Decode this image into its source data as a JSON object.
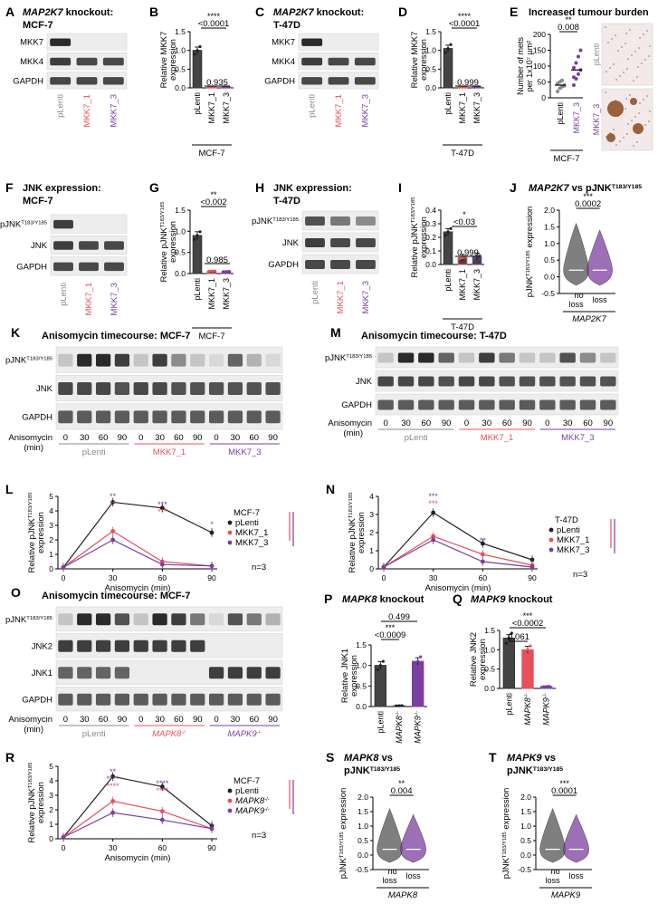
{
  "colors": {
    "black": "#222222",
    "pink": "#e8505b",
    "purple": "#7b3fa0",
    "grey": "#888888",
    "band": "#2a2a2a",
    "bgblot": "#ededed"
  },
  "panels": {
    "A": {
      "letter": "A",
      "title_italic": "MAP2K7",
      "title_rest": " knockout:",
      "title2": "MCF-7",
      "rows": [
        "MKK7",
        "MKK4",
        "GAPDH"
      ],
      "lanes": [
        "pLenti",
        "MKK7_1",
        "MKK7_3"
      ]
    },
    "B": {
      "letter": "B",
      "ylabel": "Relative MKK7",
      "ylabel2": "expression",
      "ticks": [
        "0.0",
        "0.5",
        "1.0",
        "1.5"
      ],
      "stars": "****",
      "p1": "<0.0001",
      "p2": "0.935",
      "cats": [
        "pLenti",
        "MKK7_1",
        "MKK7_3"
      ],
      "group": "MCF-7"
    },
    "C": {
      "letter": "C",
      "title_italic": "MAP2K7",
      "title_rest": " knockout:",
      "title2": "T-47D",
      "rows": [
        "MKK7",
        "MKK4",
        "GAPDH"
      ],
      "lanes": [
        "pLenti",
        "MKK7_1",
        "MKK7_3"
      ]
    },
    "D": {
      "letter": "D",
      "ylabel": "Relative MKK7",
      "ylabel2": "expression",
      "ticks": [
        "0.0",
        "0.5",
        "1.0",
        "1.5"
      ],
      "stars": "****",
      "p1": "<0.0001",
      "p2": "0.999",
      "cats": [
        "pLenti",
        "MKK7_1",
        "MKK7_3"
      ],
      "group": "T-47D"
    },
    "E": {
      "letter": "E",
      "title": "Increased tumour burden",
      "ylabel": "Number of mets",
      "ylabel2": "per 1x10⁷ µm²",
      "ticks": [
        "0",
        "50",
        "100",
        "150",
        "200"
      ],
      "stars": "**",
      "p1": "0.008",
      "cats": [
        "pLenti",
        "MKK7_3"
      ],
      "group": "MCF-7",
      "img1": "pLenti",
      "img2": "MKK7_3"
    },
    "F": {
      "letter": "F",
      "title": "JNK expression:",
      "title2": "MCF-7",
      "rows": [
        "pJNK",
        "JNK",
        "GAPDH"
      ],
      "sup": "T183/Y185",
      "lanes": [
        "pLenti",
        "MKK7_1",
        "MKK7_3"
      ]
    },
    "G": {
      "letter": "G",
      "ylabel": "Relative pJNK",
      "ylabel2": "expression",
      "sup": "T183/Y185",
      "ticks": [
        "0.0",
        "0.5",
        "1.0",
        "1.5"
      ],
      "stars": "**",
      "p1": "<0.002",
      "p2": "0.985",
      "cats": [
        "pLenti",
        "MKK7_1",
        "MKK7_3"
      ],
      "group": "MCF-7"
    },
    "H": {
      "letter": "H",
      "title": "JNK expression:",
      "title2": "T-47D",
      "rows": [
        "pJNK",
        "JNK",
        "GAPDH"
      ],
      "sup": "T183/Y185",
      "lanes": [
        "pLenti",
        "MKK7_1",
        "MKK7_3"
      ]
    },
    "I": {
      "letter": "I",
      "ylabel": "Relative pJNK",
      "ylabel2": "expression",
      "sup": "T183/Y185",
      "ticks": [
        "0.0",
        "0.1",
        "0.2",
        "0.3",
        "0.4"
      ],
      "stars": "*",
      "p1": "<0.03",
      "p2": "0.999",
      "cats": [
        "pLenti",
        "MKK7_1",
        "MKK7_3"
      ],
      "group": "T-47D"
    },
    "J": {
      "letter": "J",
      "title_italic": "MAP2K7",
      "title_rest": " vs pJNK",
      "sup": "T183/Y185",
      "ylabel": "pJNK",
      "ylabel2": " expression",
      "ticks": [
        "-0.5",
        "0.0",
        "0.5",
        "1.0",
        "1.5",
        "2.0"
      ],
      "stars": "***",
      "p1": "0.0002",
      "cats": [
        "no loss",
        "loss"
      ],
      "group": "MAP2K7"
    },
    "K": {
      "letter": "K",
      "title": "Anisomycin timecourse: MCF-7",
      "rows": [
        "pJNK",
        "JNK",
        "GAPDH"
      ],
      "sup": "T183/Y185",
      "xlabel": "Anisomycin",
      "xlabel2": "(min)",
      "times": [
        "0",
        "30",
        "60",
        "90",
        "0",
        "30",
        "60",
        "90",
        "0",
        "30",
        "60",
        "90"
      ],
      "groups": [
        "pLenti",
        "MKK7_1",
        "MKK7_3"
      ]
    },
    "M": {
      "letter": "M",
      "title": "Anisomycin timecourse: T-47D",
      "rows": [
        "pJNK",
        "JNK",
        "GAPDH"
      ],
      "sup": "T183/Y185",
      "xlabel": "Anisomycin",
      "xlabel2": "(min)",
      "times": [
        "0",
        "30",
        "60",
        "90",
        "0",
        "30",
        "60",
        "90",
        "0",
        "30",
        "60",
        "90"
      ],
      "groups": [
        "pLenti",
        "MKK7_1",
        "MKK7_3"
      ]
    },
    "L": {
      "letter": "L",
      "ylabel": "Relative pJNK",
      "ylabel2": "expression",
      "sup": "T183/Y185",
      "xlabel": "Anisomycin (min)",
      "ticks": [
        "0",
        "1",
        "2",
        "3",
        "4",
        "5"
      ],
      "xticks": [
        "0",
        "30",
        "60",
        "90"
      ],
      "legend_title": "MCF-7",
      "legend": [
        "pLenti",
        "MKK7_1",
        "MKK7_3"
      ],
      "n": "n=3",
      "s30a": "**",
      "s30b": "**",
      "s60a": "***",
      "s60b": "***",
      "s90": "*"
    },
    "N": {
      "letter": "N",
      "ylabel": "Relative pJNK",
      "ylabel2": "expression",
      "sup": "T183/Y185",
      "xlabel": "Anisomycin (min)",
      "ticks": [
        "0",
        "1",
        "2",
        "3",
        "4"
      ],
      "xticks": [
        "0",
        "30",
        "60",
        "90"
      ],
      "legend_title": "T-47D",
      "legend": [
        "pLenti",
        "MKK7_1",
        "MKK7_3"
      ],
      "n": "n=3",
      "s30a": "***",
      "s30b": "***",
      "s60": "**"
    },
    "O": {
      "letter": "O",
      "title": "Anisomycin timecourse: MCF-7",
      "rows": [
        "pJNK",
        "JNK2",
        "JNK1",
        "GAPDH"
      ],
      "sup": "T183/Y185",
      "xlabel": "Anisomycin",
      "xlabel2": "(min)",
      "times": [
        "0",
        "30",
        "60",
        "90",
        "0",
        "30",
        "60",
        "90",
        "0",
        "30",
        "60",
        "90"
      ],
      "groups": [
        "pLenti",
        "MAPK8",
        "MAPK9"
      ],
      "groupsup": "-/-"
    },
    "P": {
      "letter": "P",
      "title_italic": "MAPK8",
      "title_rest": " knockout",
      "ylabel": "Relative JNK1",
      "ylabel2": "expression",
      "ticks": [
        "0.0",
        "0.5",
        "1.0",
        "1.5"
      ],
      "stars": "***",
      "p1": "<0.0009",
      "p2": "0.499",
      "cats": [
        "pLenti",
        "MAPK8",
        "MAPK9"
      ],
      "catsup": "-/-"
    },
    "Q": {
      "letter": "Q",
      "title_italic": "MAPK9",
      "title_rest": " knockout",
      "ylabel": "Relative JNK2",
      "ylabel2": "expression",
      "ticks": [
        "0.0",
        "0.5",
        "1.0",
        "1.5"
      ],
      "stars": "***",
      "p1": "<0.0002",
      "p2": "0.061",
      "cats": [
        "pLenti",
        "MAPK8",
        "MAPK9"
      ],
      "catsup": "-/-"
    },
    "R": {
      "letter": "R",
      "ylabel": "Relative pJNK",
      "ylabel2": "expression",
      "sup": "T183/Y185",
      "xlabel": "Anisomycin (min)",
      "ticks": [
        "0",
        "1",
        "2",
        "3",
        "4",
        "5"
      ],
      "xticks": [
        "0",
        "30",
        "60",
        "90"
      ],
      "legend_title": "MCF-7",
      "legend": [
        "pLenti",
        "MAPK8",
        "MAPK9"
      ],
      "legsup": "-/-",
      "n": "n=3",
      "s30a": "**",
      "s30b": "****",
      "s30c": "****",
      "s60a": "****",
      "s60b": "****"
    },
    "S": {
      "letter": "S",
      "title_italic": "MAPK8",
      "title_rest": " vs",
      "title2": "pJNK",
      "sup": "T183/Y185",
      "ylabel": "pJNK",
      "ylabel2": " expression",
      "ticks": [
        "-0.5",
        "0.0",
        "0.5",
        "1.0",
        "1.5",
        "2.0"
      ],
      "stars": "**",
      "p1": "0.004",
      "cats": [
        "no loss",
        "loss"
      ],
      "group": "MAPK8"
    },
    "T": {
      "letter": "T",
      "title_italic": "MAPK9",
      "title_rest": " vs",
      "title2": "pJNK",
      "sup": "T183/Y185",
      "ylabel": "pJNK",
      "ylabel2": " expression",
      "ticks": [
        "-0.5",
        "0.0",
        "0.5",
        "1.0",
        "1.5",
        "2.0"
      ],
      "stars": "***",
      "p1": "0.0001",
      "cats": [
        "no loss",
        "loss"
      ],
      "group": "MAPK9"
    }
  },
  "chart_data": [
    {
      "panel": "B",
      "type": "bar",
      "categories": [
        "pLenti",
        "MKK7_1",
        "MKK7_3"
      ],
      "values": [
        1.0,
        0.02,
        0.02
      ],
      "ylim": [
        0,
        1.5
      ]
    },
    {
      "panel": "D",
      "type": "bar",
      "categories": [
        "pLenti",
        "MKK7_1",
        "MKK7_3"
      ],
      "values": [
        1.05,
        0.02,
        0.02
      ],
      "ylim": [
        0,
        1.5
      ]
    },
    {
      "panel": "E",
      "type": "scatter",
      "categories": [
        "pLenti",
        "MKK7_3"
      ],
      "values": [
        40,
        88
      ],
      "ylim": [
        0,
        200
      ]
    },
    {
      "panel": "G",
      "type": "bar",
      "categories": [
        "pLenti",
        "MKK7_1",
        "MKK7_3"
      ],
      "values": [
        0.9,
        0.06,
        0.05
      ],
      "ylim": [
        0,
        1.5
      ]
    },
    {
      "panel": "I",
      "type": "bar",
      "categories": [
        "pLenti",
        "MKK7_1",
        "MKK7_3"
      ],
      "values": [
        0.24,
        0.05,
        0.06
      ],
      "ylim": [
        0,
        0.4
      ]
    },
    {
      "panel": "L",
      "type": "line",
      "x": [
        0,
        30,
        60,
        90
      ],
      "ylim": [
        0,
        5
      ],
      "series": [
        {
          "name": "pLenti",
          "values": [
            0.1,
            4.6,
            4.2,
            2.5
          ]
        },
        {
          "name": "MKK7_1",
          "values": [
            0.1,
            2.6,
            0.5,
            0.2
          ]
        },
        {
          "name": "MKK7_3",
          "values": [
            0.1,
            2.0,
            0.3,
            0.2
          ]
        }
      ]
    },
    {
      "panel": "N",
      "type": "line",
      "x": [
        0,
        30,
        60,
        90
      ],
      "ylim": [
        0,
        4
      ],
      "series": [
        {
          "name": "pLenti",
          "values": [
            0.1,
            3.1,
            1.4,
            0.5
          ]
        },
        {
          "name": "MKK7_1",
          "values": [
            0.1,
            1.8,
            0.8,
            0.2
          ]
        },
        {
          "name": "MKK7_3",
          "values": [
            0.1,
            1.6,
            0.4,
            0.1
          ]
        }
      ]
    },
    {
      "panel": "P",
      "type": "bar",
      "categories": [
        "pLenti",
        "MAPK8",
        "MAPK9"
      ],
      "values": [
        1.0,
        0.02,
        1.1
      ],
      "ylim": [
        0,
        1.5
      ]
    },
    {
      "panel": "Q",
      "type": "bar",
      "categories": [
        "pLenti",
        "MAPK8",
        "MAPK9"
      ],
      "values": [
        1.3,
        1.0,
        0.05
      ],
      "ylim": [
        0,
        1.5
      ]
    },
    {
      "panel": "R",
      "type": "line",
      "x": [
        0,
        30,
        60,
        90
      ],
      "ylim": [
        0,
        5
      ],
      "series": [
        {
          "name": "pLenti",
          "values": [
            0.1,
            4.3,
            3.6,
            0.9
          ]
        },
        {
          "name": "MAPK8",
          "values": [
            0.1,
            2.6,
            1.9,
            0.7
          ]
        },
        {
          "name": "MAPK9",
          "values": [
            0.1,
            1.8,
            1.3,
            0.7
          ]
        }
      ]
    }
  ]
}
